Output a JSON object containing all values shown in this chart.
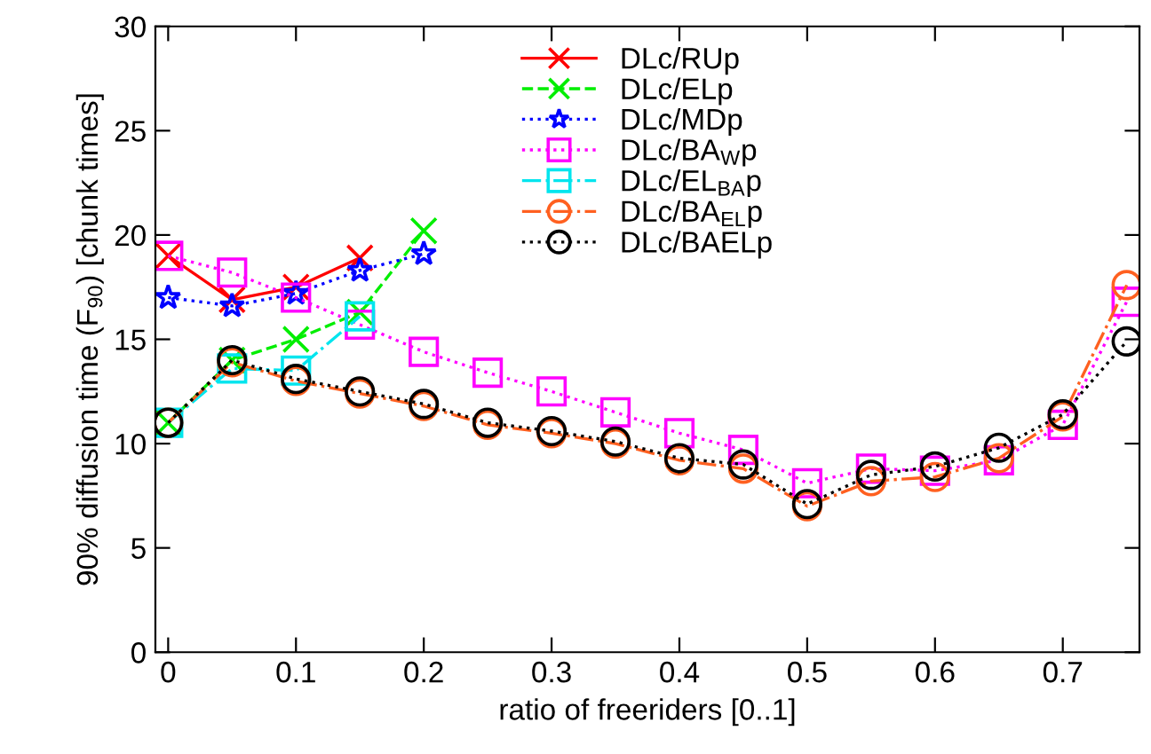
{
  "chart_data": {
    "type": "line",
    "xlabel": "ratio of freeriders [0..1]",
    "ylabel": "90% diffusion time (F$_{90}$) [chunk times]",
    "xlim": [
      -0.01,
      0.76
    ],
    "xticks": [
      0,
      0.1,
      0.2,
      0.3,
      0.4,
      0.5,
      0.6,
      0.7
    ],
    "ylim": [
      0,
      30
    ],
    "yticks": [
      0,
      5,
      10,
      15,
      20,
      25,
      30
    ],
    "grid": false,
    "legend": "top",
    "series": [
      {
        "name": "DLc/RUp",
        "color": "#ff0000",
        "line_style": "solid",
        "marker": "cross",
        "x": [
          0,
          0.05,
          0.1,
          0.15
        ],
        "values": [
          19,
          16.9,
          17.5,
          18.9
        ]
      },
      {
        "name": "DLc/ELp",
        "color": "#00ee00",
        "line_style": "dashed",
        "marker": "cross",
        "x": [
          0,
          0.05,
          0.1,
          0.15,
          0.2
        ],
        "values": [
          11,
          14,
          15,
          16.3,
          20.2
        ]
      },
      {
        "name": "DLc/MDp",
        "color": "#0000ff",
        "line_style": "dotted",
        "marker": "star",
        "x": [
          0,
          0.05,
          0.1,
          0.15,
          0.2
        ],
        "values": [
          17,
          16.6,
          17.2,
          18.3,
          19.1
        ]
      },
      {
        "name": "DLc/BA$_{W}$p",
        "color": "#ff00ff",
        "line_style": "dotted",
        "marker": "square",
        "x": [
          0,
          0.05,
          0.1,
          0.15,
          0.2,
          0.25,
          0.3,
          0.35,
          0.4,
          0.45,
          0.5,
          0.55,
          0.6,
          0.65,
          0.7,
          0.75
        ],
        "values": [
          19,
          18.2,
          17,
          15.7,
          14.4,
          13.4,
          12.5,
          11.5,
          10.5,
          9.7,
          8.1,
          8.8,
          8.7,
          9.2,
          10.9,
          16.8
        ]
      },
      {
        "name": "DLc/EL$_{BA}$p",
        "color": "#00e5ee",
        "line_style": "dashdot",
        "marker": "square",
        "x": [
          0,
          0.05,
          0.1,
          0.15
        ],
        "values": [
          11,
          13.6,
          13.5,
          16.1
        ]
      },
      {
        "name": "DLc/BA$_{EL}$p",
        "color": "#ff6020",
        "line_style": "dashdot",
        "marker": "circle",
        "x": [
          0,
          0.05,
          0.1,
          0.15,
          0.2,
          0.25,
          0.3,
          0.35,
          0.4,
          0.45,
          0.5,
          0.55,
          0.6,
          0.65,
          0.7,
          0.75
        ],
        "values": [
          11,
          13.9,
          13.0,
          12.4,
          11.8,
          10.9,
          10.5,
          10.0,
          9.2,
          8.8,
          7.0,
          8.2,
          8.4,
          9.3,
          11.3,
          17.6
        ]
      },
      {
        "name": "DLc/BAELp",
        "color": "#000000",
        "line_style": "dotted",
        "marker": "circle",
        "x": [
          0,
          0.05,
          0.1,
          0.15,
          0.2,
          0.25,
          0.3,
          0.35,
          0.4,
          0.45,
          0.5,
          0.55,
          0.6,
          0.65,
          0.7,
          0.75
        ],
        "values": [
          11,
          14,
          13.1,
          12.5,
          11.9,
          11.0,
          10.6,
          10.1,
          9.3,
          9.0,
          7.1,
          8.5,
          8.9,
          9.8,
          11.4,
          14.9
        ]
      }
    ]
  }
}
